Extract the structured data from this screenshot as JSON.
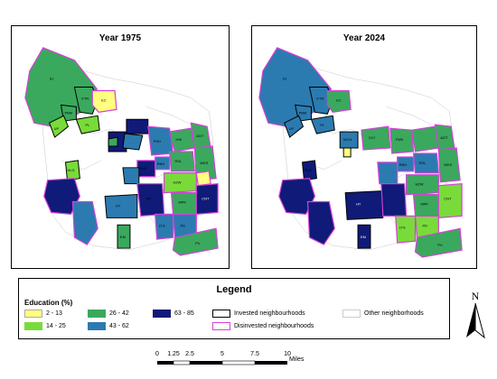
{
  "maps": [
    {
      "title": "Year 1975"
    },
    {
      "title": "Year 2024"
    }
  ],
  "colors": {
    "c_2_13": "#ffff80",
    "c_14_25": "#79db3a",
    "c_26_42": "#3aa95d",
    "c_43_62": "#2b7bb0",
    "c_63_85": "#101a78",
    "invested": "#000000",
    "disinvested": "#d441d7",
    "other": "#bbbbbb"
  },
  "map_1975_labels": [
    "SJ",
    "KTN",
    "PBM",
    "EC",
    "UP",
    "PL",
    "HLG",
    "FHH",
    "HUD",
    "HW",
    "HZW",
    "AGT",
    "WKS",
    "RSL",
    "RNH",
    "MPK",
    "LTS",
    "PD",
    "PV",
    "EM",
    "HT",
    "SP",
    "CNT"
  ],
  "map_2024_labels": [
    "SJ",
    "KTN",
    "PBM",
    "EC",
    "UP",
    "PL",
    "CLY",
    "MCN",
    "HLG",
    "FWK",
    "AGT",
    "WKS",
    "RNH",
    "RSL",
    "HZW",
    "MPK",
    "HT",
    "PD",
    "LTS",
    "PV",
    "CNT",
    "EM"
  ],
  "legend": {
    "title": "Legend",
    "subtitle": "Education (%)",
    "classes": [
      {
        "label": "2 - 13"
      },
      {
        "label": "14 - 25"
      },
      {
        "label": "26 - 42"
      },
      {
        "label": "43 - 62"
      },
      {
        "label": "63 - 85"
      }
    ],
    "invested": "Invested neighbourhoods",
    "disinvested": "Disinvested neighbourhoods",
    "other": "Other neighborhoods"
  },
  "north_label": "N",
  "scale": {
    "ticks": [
      "0",
      "1.25",
      "2.5",
      "5",
      "7.5",
      "10"
    ],
    "unit": "Miles"
  }
}
